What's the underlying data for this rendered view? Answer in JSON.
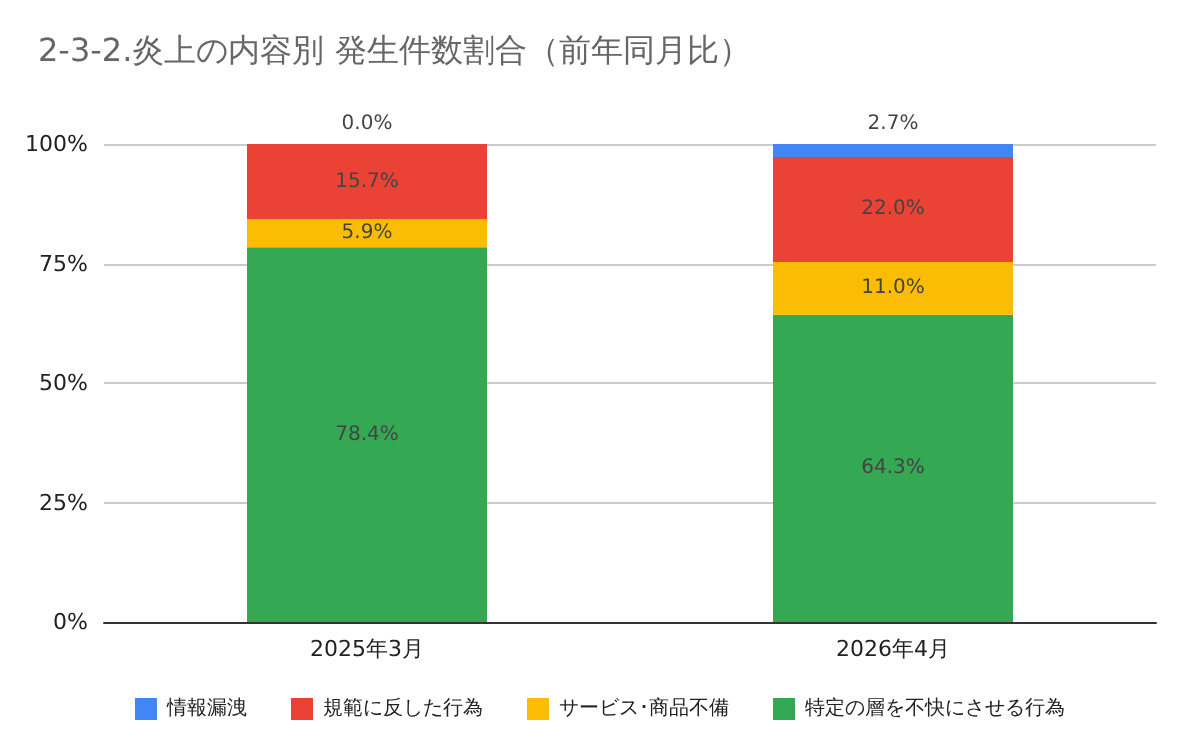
{
  "chart_data": {
    "type": "bar",
    "title": "2-3-2.炎上の内容別 発生件数割合（前年同月比）",
    "categories": [
      "2025年3月",
      "2026年4月"
    ],
    "series": [
      {
        "name": "特定の層を不快にさせる行為",
        "color": "#34a853",
        "values": [
          78.4,
          64.3
        ],
        "value_labels": [
          "78.4%",
          "64.3%"
        ]
      },
      {
        "name": "サービス･商品不備",
        "color": "#fbbc04",
        "values": [
          5.9,
          11.0
        ],
        "value_labels": [
          "5.9%",
          "11.0%"
        ]
      },
      {
        "name": "規範に反した行為",
        "color": "#ea4335",
        "values": [
          15.7,
          22.0
        ],
        "value_labels": [
          "15.7%",
          "22.0%"
        ]
      },
      {
        "name": "情報漏洩",
        "color": "#4285f4",
        "values": [
          0.0,
          2.7
        ],
        "value_labels": [
          "0.0%",
          "2.7%"
        ]
      }
    ],
    "stacked": true,
    "ylim": [
      0,
      100
    ],
    "yticks": [
      {
        "value": 0,
        "label": "0%"
      },
      {
        "value": 25,
        "label": "25%"
      },
      {
        "value": 50,
        "label": "50%"
      },
      {
        "value": 75,
        "label": "75%"
      },
      {
        "value": 100,
        "label": "100%"
      }
    ],
    "grid": "y",
    "legend": "bottom"
  }
}
